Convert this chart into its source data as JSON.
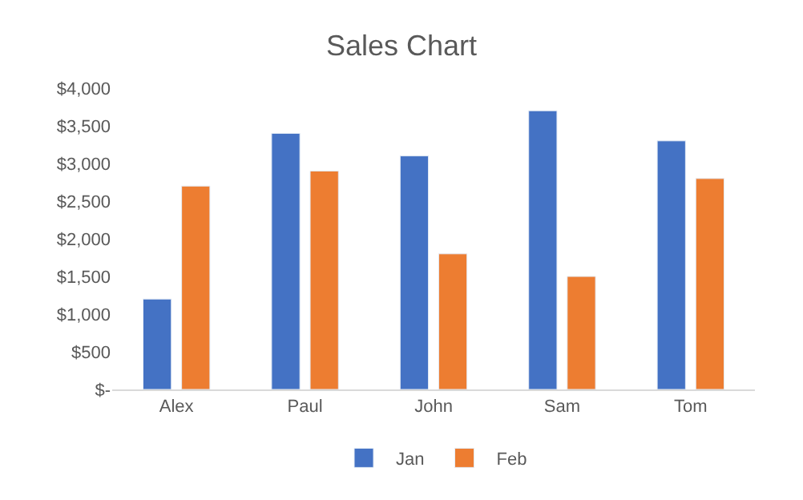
{
  "chart_data": {
    "type": "bar",
    "title": "Sales Chart",
    "categories": [
      "Alex",
      "Paul",
      "John",
      "Sam",
      "Tom"
    ],
    "series": [
      {
        "name": "Jan",
        "color": "#4472c4",
        "values": [
          1200,
          3400,
          3100,
          3700,
          3300
        ]
      },
      {
        "name": "Feb",
        "color": "#ed7d31",
        "values": [
          2700,
          2900,
          1800,
          1500,
          2800
        ]
      }
    ],
    "ylim": [
      0,
      4000
    ],
    "yticks": [
      {
        "value": 0,
        "label": "$-"
      },
      {
        "value": 500,
        "label": "$500"
      },
      {
        "value": 1000,
        "label": "$1,000"
      },
      {
        "value": 1500,
        "label": "$1,500"
      },
      {
        "value": 2000,
        "label": "$2,000"
      },
      {
        "value": 2500,
        "label": "$2,500"
      },
      {
        "value": 3000,
        "label": "$3,000"
      },
      {
        "value": 3500,
        "label": "$3,500"
      },
      {
        "value": 4000,
        "label": "$4,000"
      }
    ],
    "grid": false,
    "legend": "bottom"
  }
}
